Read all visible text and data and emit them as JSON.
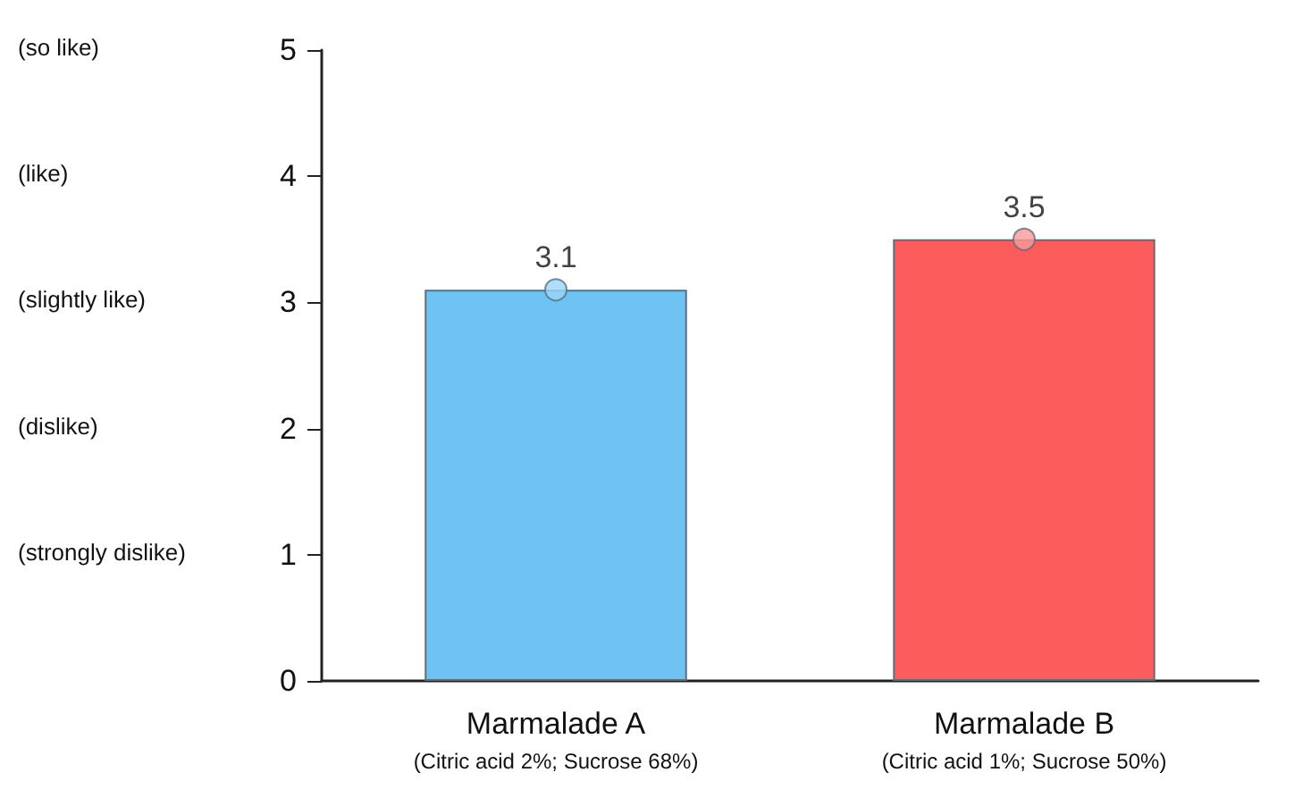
{
  "chart_data": {
    "type": "bar",
    "categories": [
      "Marmalade A\n(Citric acid 2%; Sucrose 68%)",
      "Marmalade B\n(Citric acid 1%; Sucrose 50%)"
    ],
    "series": [
      {
        "values": [
          3.1,
          3.5
        ],
        "colors": [
          "#6ec3f4",
          "#fc5c5c"
        ]
      },
      {
        "type": "scatter",
        "x": [
          "Marmalade A\n(Citric acid 2%; Sucrose 68%)",
          "Marmalade B\n(Citric acid 1%; Sucrose 50%)"
        ],
        "values": [
          3.1,
          3.5
        ],
        "value_labels": [
          "3.1",
          "3.5"
        ],
        "colors": [
          "#9ad6f8",
          "#fb9a9a"
        ]
      }
    ],
    "ylim": [
      0,
      5
    ],
    "yticks": [
      0,
      1,
      2,
      3,
      4,
      5
    ],
    "grid": false,
    "marker": "circle",
    "annotations": [
      "(so like)",
      "(like)",
      "(slightly like)",
      "(dislike)",
      "(strongly dislike)"
    ]
  }
}
